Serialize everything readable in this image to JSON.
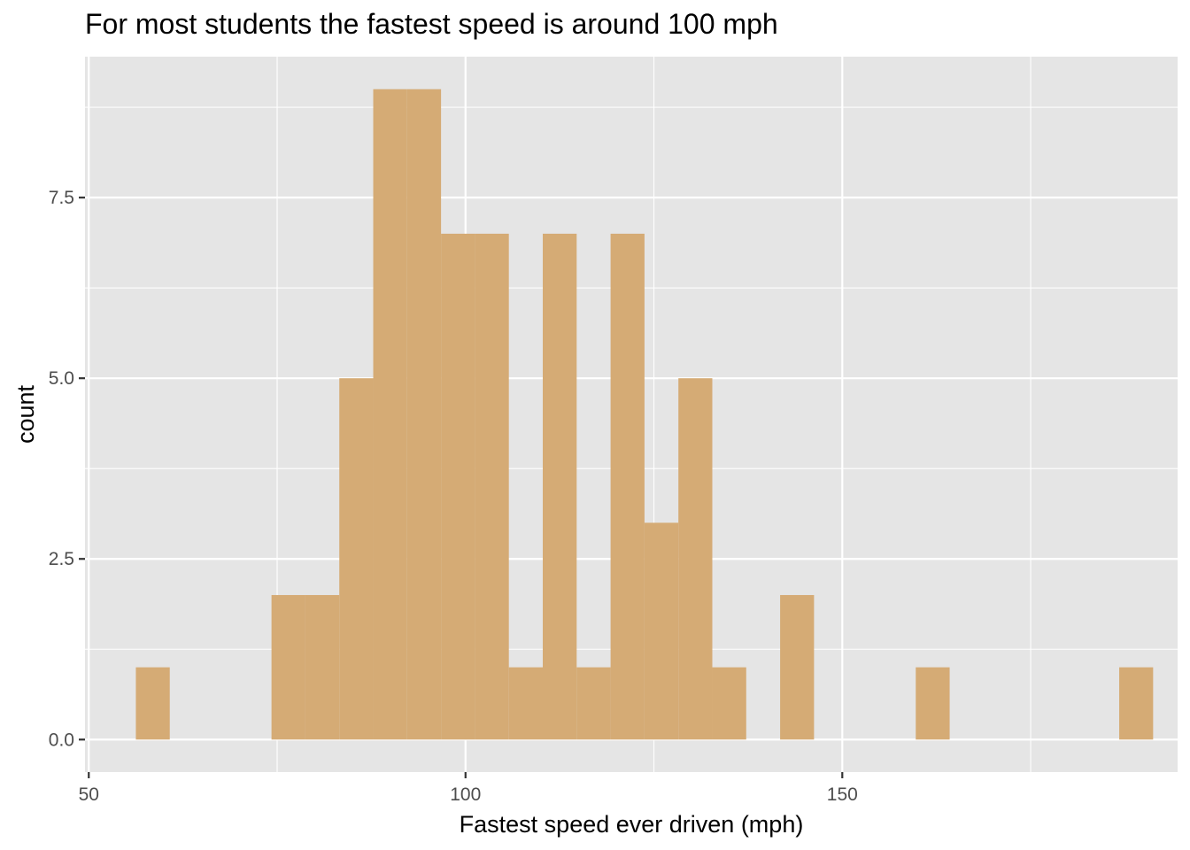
{
  "chart_data": {
    "type": "bar",
    "title": "For most students the fastest speed is around 100 mph",
    "xlabel": "Fastest speed ever driven (mph)",
    "ylabel": "count",
    "xlim": [
      49.5,
      194.5
    ],
    "ylim": [
      -0.45,
      9.45
    ],
    "x_ticks": [
      50,
      100,
      150
    ],
    "x_tick_labels": [
      "50",
      "100",
      "150"
    ],
    "y_ticks": [
      0,
      2.5,
      5,
      7.5
    ],
    "y_tick_labels": [
      "0.0",
      "2.5",
      "5.0",
      "7.5"
    ],
    "bin_width": 4.5,
    "bins": [
      {
        "start": 56.25,
        "count": 1
      },
      {
        "start": 74.25,
        "count": 2
      },
      {
        "start": 78.75,
        "count": 2
      },
      {
        "start": 83.25,
        "count": 5
      },
      {
        "start": 87.75,
        "count": 9
      },
      {
        "start": 92.25,
        "count": 9
      },
      {
        "start": 96.75,
        "count": 7
      },
      {
        "start": 101.25,
        "count": 7
      },
      {
        "start": 105.75,
        "count": 1
      },
      {
        "start": 110.25,
        "count": 7
      },
      {
        "start": 114.75,
        "count": 1
      },
      {
        "start": 119.25,
        "count": 7
      },
      {
        "start": 123.75,
        "count": 3
      },
      {
        "start": 128.25,
        "count": 5
      },
      {
        "start": 132.75,
        "count": 1
      },
      {
        "start": 141.75,
        "count": 2
      },
      {
        "start": 159.75,
        "count": 1
      },
      {
        "start": 186.75,
        "count": 1
      }
    ],
    "grid": true,
    "colors": {
      "bar_fill": "#d5ab75",
      "panel_background": "#e5e5e5",
      "grid_line": "#ffffff",
      "tick_text": "#4d4d4d",
      "tick_mark": "#333333"
    }
  }
}
